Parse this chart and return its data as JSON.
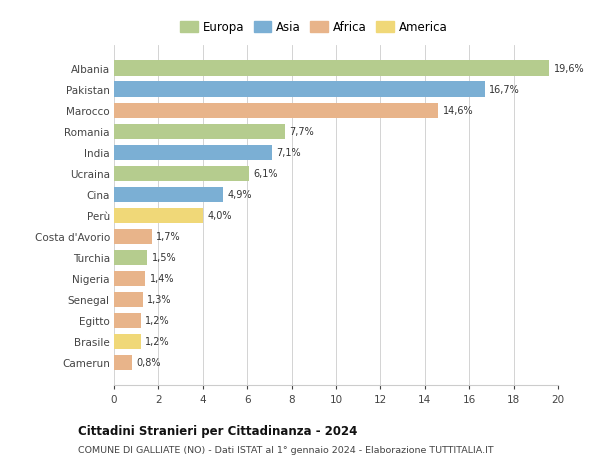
{
  "countries": [
    "Albania",
    "Pakistan",
    "Marocco",
    "Romania",
    "India",
    "Ucraina",
    "Cina",
    "Perù",
    "Costa d'Avorio",
    "Turchia",
    "Nigeria",
    "Senegal",
    "Egitto",
    "Brasile",
    "Camerun"
  ],
  "values": [
    19.6,
    16.7,
    14.6,
    7.7,
    7.1,
    6.1,
    4.9,
    4.0,
    1.7,
    1.5,
    1.4,
    1.3,
    1.2,
    1.2,
    0.8
  ],
  "labels": [
    "19,6%",
    "16,7%",
    "14,6%",
    "7,7%",
    "7,1%",
    "6,1%",
    "4,9%",
    "4,0%",
    "1,7%",
    "1,5%",
    "1,4%",
    "1,3%",
    "1,2%",
    "1,2%",
    "0,8%"
  ],
  "colors": [
    "#b5cc8e",
    "#7bafd4",
    "#e8b48a",
    "#b5cc8e",
    "#7bafd4",
    "#b5cc8e",
    "#7bafd4",
    "#f0d878",
    "#e8b48a",
    "#b5cc8e",
    "#e8b48a",
    "#e8b48a",
    "#e8b48a",
    "#f0d878",
    "#e8b48a"
  ],
  "continent_colors": {
    "Europa": "#b5cc8e",
    "Asia": "#7bafd4",
    "Africa": "#e8b48a",
    "America": "#f0d878"
  },
  "title1": "Cittadini Stranieri per Cittadinanza - 2024",
  "title2": "COMUNE DI GALLIATE (NO) - Dati ISTAT al 1° gennaio 2024 - Elaborazione TUTTITALIA.IT",
  "xlim": [
    0,
    20
  ],
  "xticks": [
    0,
    2,
    4,
    6,
    8,
    10,
    12,
    14,
    16,
    18,
    20
  ],
  "bg_color": "#ffffff",
  "grid_color": "#cccccc"
}
